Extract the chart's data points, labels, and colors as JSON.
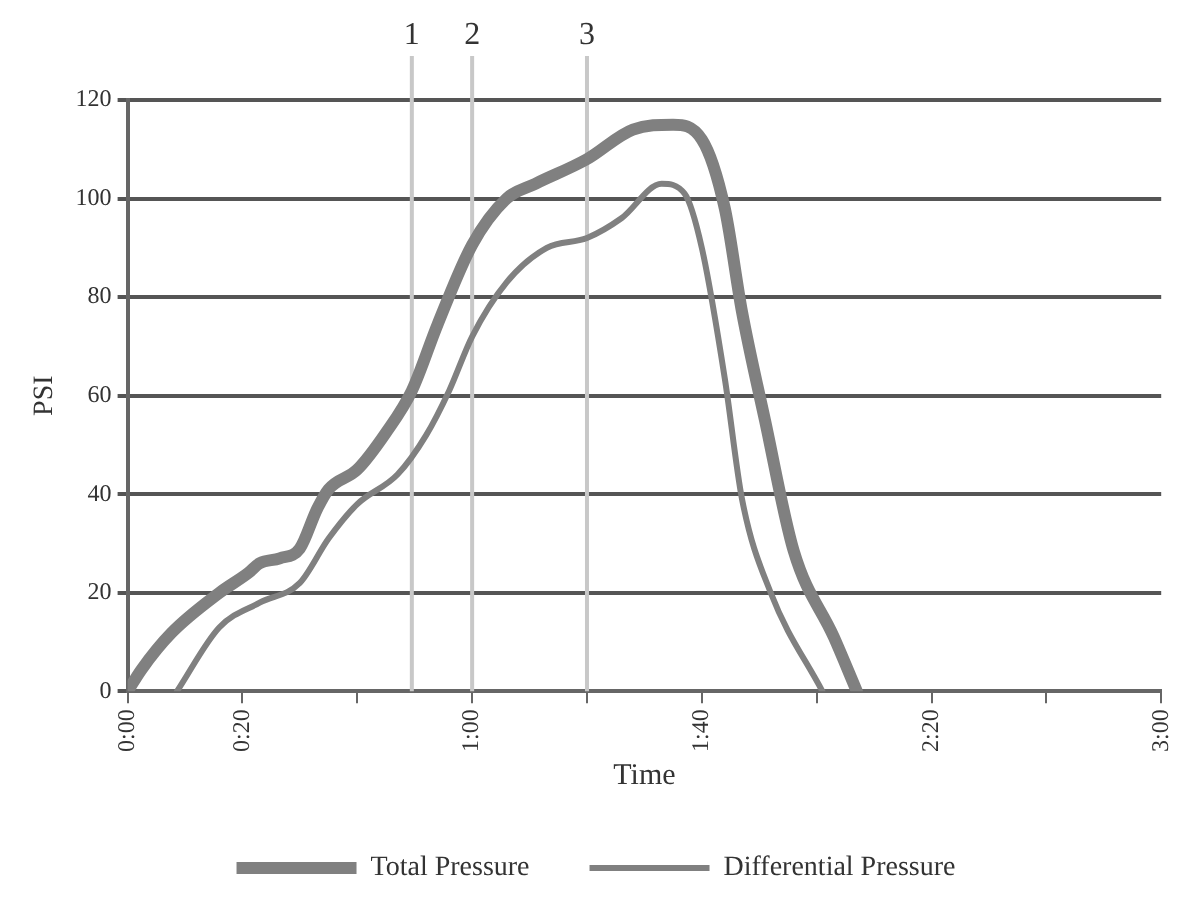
{
  "chart_data": {
    "type": "line",
    "xlabel": "Time",
    "ylabel": "PSI",
    "xlim": [
      0,
      180
    ],
    "xticks": [
      {
        "value": 0,
        "label": "0:00"
      },
      {
        "value": 20,
        "label": "0:20"
      },
      {
        "value": 40,
        "label": null
      },
      {
        "value": 60,
        "label": "1:00"
      },
      {
        "value": 80,
        "label": null
      },
      {
        "value": 100,
        "label": "1:40"
      },
      {
        "value": 120,
        "label": null
      },
      {
        "value": 140,
        "label": "2:20"
      },
      {
        "value": 160,
        "label": null
      },
      {
        "value": 180,
        "label": "3:00"
      }
    ],
    "ylim": [
      0,
      120
    ],
    "yticks": [
      0,
      20,
      40,
      60,
      80,
      100,
      120
    ],
    "grid": "y",
    "legend": "bottom",
    "marker": "none",
    "line_style": "solid",
    "series": [
      {
        "name": "Total Pressure",
        "color": "#808080",
        "x": [
          0,
          2.4,
          7.6,
          16,
          21,
          23,
          26.5,
          30,
          33,
          35,
          40,
          45,
          49.5,
          54,
          60,
          66,
          71,
          80,
          88,
          95,
          100,
          104,
          107,
          111,
          116,
          123,
          127
        ],
        "values": [
          0,
          4.4,
          11.8,
          20,
          24,
          26,
          27,
          29,
          37,
          41,
          45,
          52.5,
          61,
          74.5,
          90.6,
          100,
          103,
          108,
          114,
          115,
          112,
          98,
          77,
          55,
          28.5,
          11,
          0
        ]
      },
      {
        "name": "Differential Pressure",
        "color": "#808080",
        "x": [
          8.6,
          16,
          23,
          30,
          35,
          40,
          47,
          52,
          56,
          60,
          66,
          73,
          80,
          86,
          93,
          97,
          100,
          104,
          107,
          112,
          121
        ],
        "values": [
          0,
          13,
          18,
          22,
          31,
          38,
          44,
          52,
          61,
          72,
          83,
          90,
          92,
          96,
          103,
          101,
          90,
          63.5,
          39,
          20,
          0
        ]
      }
    ],
    "ref_lines": [
      {
        "axis": "x",
        "value": 49.5,
        "color": "#c8c8c8"
      },
      {
        "axis": "x",
        "value": 60,
        "color": "#c8c8c8"
      },
      {
        "axis": "x",
        "value": 80,
        "color": "#c8c8c8"
      }
    ],
    "annotations": [
      "1",
      "2",
      "3"
    ]
  }
}
